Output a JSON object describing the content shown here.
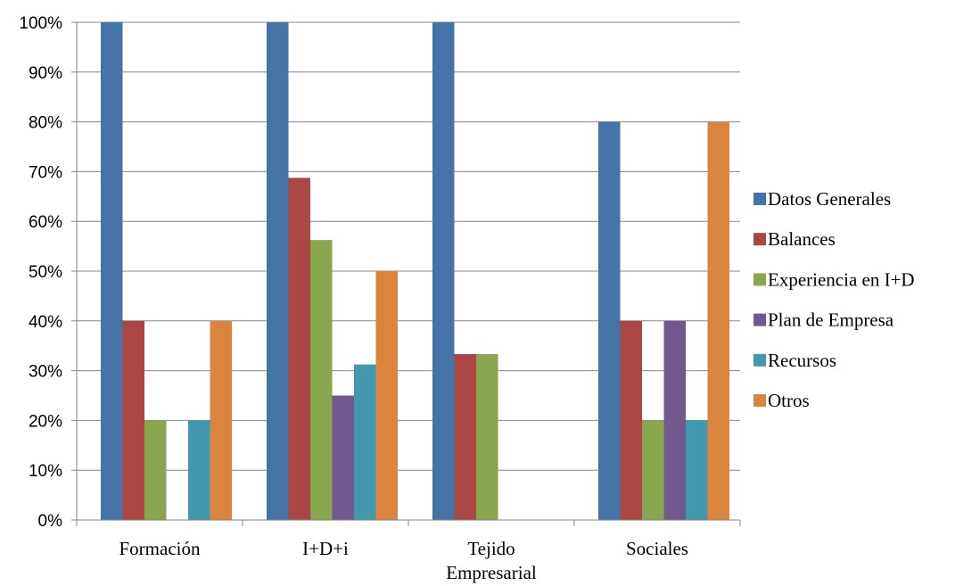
{
  "chart_data": {
    "type": "bar",
    "title": "",
    "xlabel": "",
    "ylabel": "",
    "categories": [
      [
        "Formación"
      ],
      [
        "I+D+i"
      ],
      [
        "Tejido",
        "Empresarial"
      ],
      [
        "Sociales"
      ]
    ],
    "ylim": [
      0,
      100
    ],
    "yticks": [
      0,
      10,
      20,
      30,
      40,
      50,
      60,
      70,
      80,
      90,
      100
    ],
    "ytick_labels": [
      "0%",
      "10%",
      "20%",
      "30%",
      "40%",
      "50%",
      "60%",
      "70%",
      "80%",
      "90%",
      "100%"
    ],
    "grid": true,
    "legend_position": "right",
    "series": [
      {
        "name": "Datos Generales",
        "color": "#4572a7",
        "values": [
          100,
          100,
          100,
          80
        ]
      },
      {
        "name": "Balances",
        "color": "#aa4643",
        "values": [
          40,
          68.75,
          33.33,
          40
        ]
      },
      {
        "name": "Experiencia en I+D",
        "color": "#89a54e",
        "values": [
          20,
          56.25,
          33.33,
          20
        ]
      },
      {
        "name": "Plan de Empresa",
        "color": "#71588f",
        "values": [
          0,
          25,
          0,
          40
        ]
      },
      {
        "name": "Recursos",
        "color": "#4198af",
        "values": [
          20,
          31.25,
          0,
          20
        ]
      },
      {
        "name": "Otros",
        "color": "#db843d",
        "values": [
          40,
          50,
          0,
          80
        ]
      }
    ]
  }
}
